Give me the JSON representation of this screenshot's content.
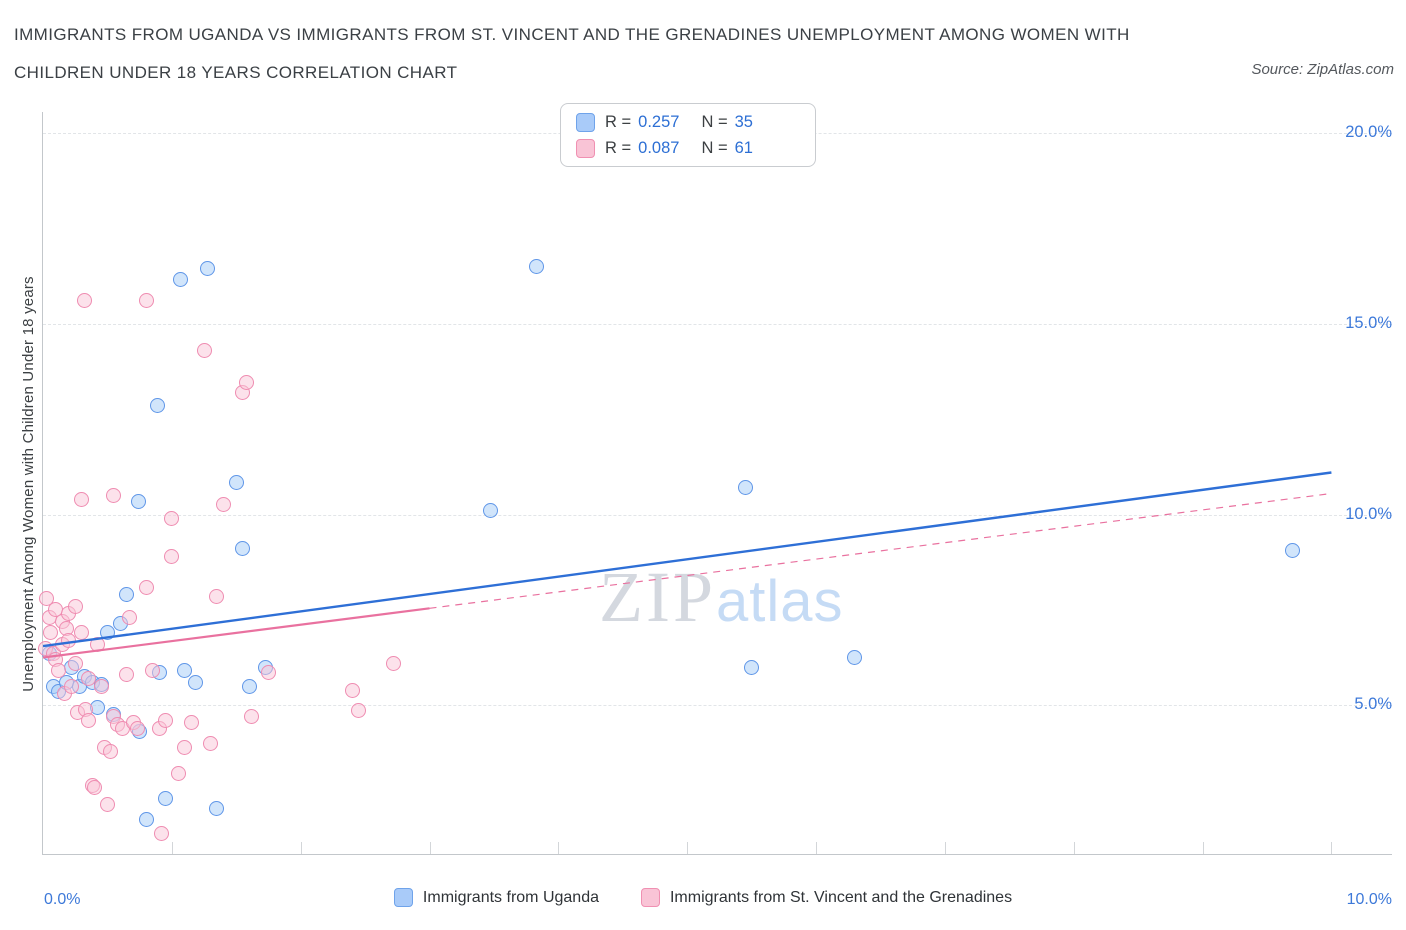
{
  "header": {
    "title_lines": [
      "IMMIGRANTS FROM UGANDA VS IMMIGRANTS FROM ST. VINCENT AND THE GRENADINES UNEMPLOYMENT AMONG WOMEN WITH",
      "CHILDREN UNDER 18 YEARS CORRELATION CHART"
    ],
    "source": "Source: ZipAtlas.com"
  },
  "watermark": {
    "part1": "ZIP",
    "part2": "atlas"
  },
  "legend_box": {
    "series": [
      {
        "r_label": "R =",
        "r_value": "0.257",
        "n_label": "N =",
        "n_value": "35"
      },
      {
        "r_label": "R =",
        "r_value": "0.087",
        "n_label": "N =",
        "n_value": "61"
      }
    ]
  },
  "axes": {
    "y_label": "Unemployment Among Women with Children Under 18 years",
    "y_ticks": [
      {
        "value": 20,
        "label": "20.0%"
      },
      {
        "value": 15,
        "label": "15.0%"
      },
      {
        "value": 10,
        "label": "10.0%"
      },
      {
        "value": 5,
        "label": "5.0%"
      }
    ],
    "x_left_label": "0.0%",
    "x_right_label": "10.0%"
  },
  "bottom_legend": [
    {
      "label": "Immigrants from Uganda"
    },
    {
      "label": "Immigrants from St. Vincent and the Grenadines"
    }
  ],
  "colors": {
    "accent_blue": "#2d6fd4",
    "tick_label_blue": "#3d79d9",
    "uganda_stroke": "#5f96e8",
    "uganda_fill": "#a4cbf7",
    "stvincent_stroke": "#ef8cb1",
    "stvincent_fill": "#f9c6d8",
    "trend_blue": "#2e6fd6",
    "trend_pink": "#e9719f"
  },
  "chart_data": {
    "type": "scatter",
    "title": "IMMIGRANTS FROM UGANDA VS IMMIGRANTS FROM ST. VINCENT AND THE GRENADINES UNEMPLOYMENT AMONG WOMEN WITH CHILDREN UNDER 18 YEARS CORRELATION CHART",
    "xlabel": "",
    "ylabel": "Unemployment Among Women with Children Under 18 years",
    "xlim": [
      0,
      10.47
    ],
    "ylim": [
      1.1,
      20.55
    ],
    "gridlines_y": [
      5,
      10,
      15,
      20
    ],
    "x_axis_ticks": [
      1,
      2,
      3,
      4,
      5,
      6,
      7,
      8,
      9,
      10
    ],
    "legend_position": "bottom",
    "series": [
      {
        "name": "Immigrants from Uganda",
        "R": 0.257,
        "N": 35,
        "color": "#5f96e8",
        "points": [
          [
            0.05,
            6.35
          ],
          [
            0.08,
            5.5
          ],
          [
            0.12,
            5.35
          ],
          [
            0.18,
            5.6
          ],
          [
            0.22,
            6.0
          ],
          [
            0.28,
            5.5
          ],
          [
            0.32,
            5.75
          ],
          [
            0.38,
            5.6
          ],
          [
            0.42,
            4.95
          ],
          [
            0.45,
            5.55
          ],
          [
            0.5,
            6.9
          ],
          [
            0.55,
            4.75
          ],
          [
            0.6,
            7.15
          ],
          [
            0.65,
            7.9
          ],
          [
            0.74,
            10.35
          ],
          [
            0.75,
            4.3
          ],
          [
            0.8,
            2.0
          ],
          [
            0.89,
            12.85
          ],
          [
            0.9,
            5.85
          ],
          [
            0.95,
            2.55
          ],
          [
            1.07,
            16.15
          ],
          [
            1.1,
            5.9
          ],
          [
            1.18,
            5.6
          ],
          [
            1.28,
            16.45
          ],
          [
            1.35,
            2.3
          ],
          [
            1.5,
            10.85
          ],
          [
            1.55,
            9.1
          ],
          [
            1.6,
            5.5
          ],
          [
            1.73,
            6.0
          ],
          [
            3.47,
            10.1
          ],
          [
            3.83,
            16.5
          ],
          [
            5.45,
            10.7
          ],
          [
            5.5,
            6.0
          ],
          [
            6.3,
            6.25
          ],
          [
            9.7,
            9.05
          ]
        ]
      },
      {
        "name": "Immigrants from St. Vincent and the Grenadines",
        "R": 0.087,
        "N": 61,
        "color": "#ef8cb1",
        "points": [
          [
            0.02,
            6.5
          ],
          [
            0.03,
            7.8
          ],
          [
            0.05,
            7.3
          ],
          [
            0.06,
            6.9
          ],
          [
            0.08,
            6.35
          ],
          [
            0.1,
            7.5
          ],
          [
            0.1,
            6.2
          ],
          [
            0.12,
            5.9
          ],
          [
            0.15,
            7.2
          ],
          [
            0.15,
            6.6
          ],
          [
            0.17,
            5.3
          ],
          [
            0.18,
            7.0
          ],
          [
            0.2,
            7.4
          ],
          [
            0.2,
            6.7
          ],
          [
            0.22,
            5.5
          ],
          [
            0.25,
            7.6
          ],
          [
            0.25,
            6.1
          ],
          [
            0.27,
            4.8
          ],
          [
            0.3,
            10.4
          ],
          [
            0.3,
            6.9
          ],
          [
            0.32,
            15.6
          ],
          [
            0.33,
            4.9
          ],
          [
            0.35,
            5.7
          ],
          [
            0.35,
            4.6
          ],
          [
            0.38,
            2.9
          ],
          [
            0.4,
            2.85
          ],
          [
            0.42,
            6.6
          ],
          [
            0.45,
            5.5
          ],
          [
            0.48,
            3.9
          ],
          [
            0.5,
            2.4
          ],
          [
            0.52,
            3.8
          ],
          [
            0.55,
            10.5
          ],
          [
            0.55,
            4.7
          ],
          [
            0.58,
            4.5
          ],
          [
            0.62,
            4.4
          ],
          [
            0.65,
            5.8
          ],
          [
            0.67,
            7.3
          ],
          [
            0.7,
            4.55
          ],
          [
            0.73,
            4.4
          ],
          [
            0.8,
            15.6
          ],
          [
            0.8,
            8.1
          ],
          [
            0.85,
            5.9
          ],
          [
            0.9,
            4.4
          ],
          [
            0.92,
            1.65
          ],
          [
            0.95,
            4.6
          ],
          [
            1.0,
            9.9
          ],
          [
            1.0,
            8.9
          ],
          [
            1.05,
            3.2
          ],
          [
            1.1,
            3.9
          ],
          [
            1.15,
            4.55
          ],
          [
            1.25,
            14.3
          ],
          [
            1.3,
            4.0
          ],
          [
            1.35,
            7.85
          ],
          [
            1.4,
            10.25
          ],
          [
            1.55,
            13.2
          ],
          [
            1.58,
            13.45
          ],
          [
            1.62,
            4.7
          ],
          [
            1.75,
            5.85
          ],
          [
            2.4,
            5.4
          ],
          [
            2.45,
            4.85
          ],
          [
            2.72,
            6.1
          ]
        ]
      }
    ],
    "trend_lines": [
      {
        "series": "Immigrants from Uganda",
        "style": "solid",
        "color": "#2e6fd6",
        "width": 2.4,
        "x1": 0,
        "y1": 6.55,
        "x2": 10,
        "y2": 11.1
      },
      {
        "series": "Immigrants from St. Vincent and the Grenadines",
        "style": "solid",
        "color": "#e9719f",
        "width": 2.2,
        "x1": 0,
        "y1": 6.25,
        "x2": 3.0,
        "y2": 7.54
      },
      {
        "series": "Immigrants from St. Vincent and the Grenadines",
        "style": "dashed",
        "color": "#e9719f",
        "width": 1.2,
        "x1": 3.0,
        "y1": 7.54,
        "x2": 10,
        "y2": 10.55
      }
    ]
  }
}
